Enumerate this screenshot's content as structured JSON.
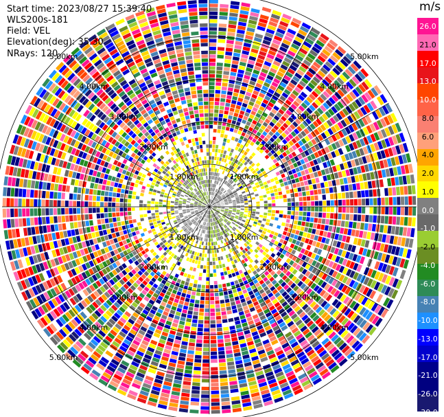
{
  "header": {
    "start_time": "Start time: 2023/08/27 15:39:40",
    "instrument": "WLS200s-181",
    "field": "Field: VEL",
    "elevation": "Elevation(deg): 35.30",
    "nrays": "NRays: 120"
  },
  "ppi": {
    "range_ring_labels": [
      "1.00km",
      "2.00km",
      "3.00km",
      "4.00km",
      "5.00km"
    ],
    "n_rays": 120,
    "max_range_km": 5.0
  },
  "colorbar": {
    "unit": "m/s",
    "ticks": [
      "26.0",
      "21.0",
      "17.0",
      "13.0",
      "10.0",
      "8.0",
      "6.0",
      "4.0",
      "2.0",
      "1.0",
      "0.0",
      "-1.0",
      "-2.0",
      "-4.0",
      "-6.0",
      "-8.0",
      "-10.0",
      "-13.0",
      "-17.0",
      "-21.0",
      "-26.0",
      "-30.0"
    ],
    "colors": [
      "#ff1493",
      "#ff69b4",
      "#ff0000",
      "#e8141a",
      "#ff4500",
      "#ff6347",
      "#fa8072",
      "#ffa07a",
      "#ffa500",
      "#ffd700",
      "#ffff00",
      "#808080",
      "#696969",
      "#9acd32",
      "#6b8e23",
      "#228b22",
      "#2e8b57",
      "#4682b4",
      "#1e90ff",
      "#0000ff",
      "#0000cd",
      "#00008b",
      "#000080",
      "#191970"
    ]
  }
}
